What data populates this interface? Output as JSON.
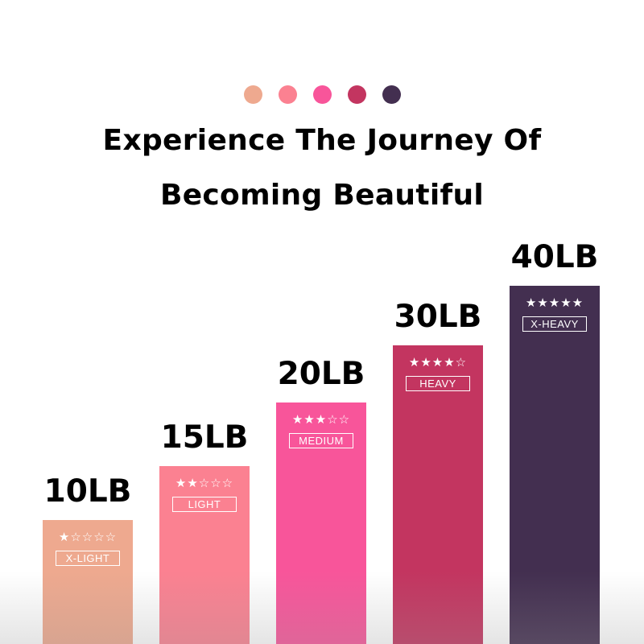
{
  "dots": [
    "#eea98f",
    "#fb8191",
    "#f8559a",
    "#c33560",
    "#432f50"
  ],
  "headline": {
    "line1": "Experience The Journey Of",
    "line2": "Becoming Beautiful"
  },
  "bars": [
    {
      "weight": "10LB",
      "stars": "★☆☆☆☆",
      "rating": 1,
      "level": "X-LIGHT",
      "color": "#eea98f"
    },
    {
      "weight": "15LB",
      "stars": "★★☆☆☆",
      "rating": 2,
      "level": "LIGHT",
      "color": "#fb8191"
    },
    {
      "weight": "20LB",
      "stars": "★★★☆☆",
      "rating": 3,
      "level": "MEDIUM",
      "color": "#f8559a"
    },
    {
      "weight": "30LB",
      "stars": "★★★★☆",
      "rating": 4,
      "level": "HEAVY",
      "color": "#c33560"
    },
    {
      "weight": "40LB",
      "stars": "★★★★★",
      "rating": 5,
      "level": "X-HEAVY",
      "color": "#432f50"
    }
  ]
}
